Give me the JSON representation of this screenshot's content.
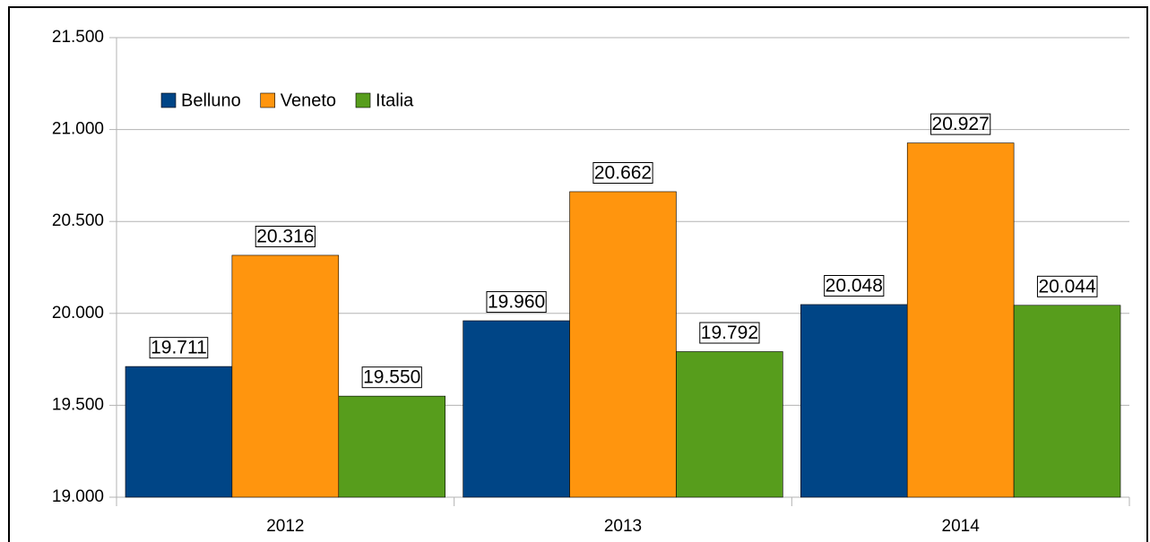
{
  "chart_data": {
    "type": "bar",
    "categories": [
      "2012",
      "2013",
      "2014"
    ],
    "series": [
      {
        "name": "Belluno",
        "color": "#004586",
        "values": [
          19711,
          19960,
          20048
        ],
        "value_labels": [
          "19.711",
          "19.960",
          "20.048"
        ]
      },
      {
        "name": "Veneto",
        "color": "#ff950e",
        "values": [
          20316,
          20662,
          20927
        ],
        "value_labels": [
          "20.316",
          "20.662",
          "20.927"
        ]
      },
      {
        "name": "Italia",
        "color": "#579d1c",
        "values": [
          19550,
          19792,
          20044
        ],
        "value_labels": [
          "19.550",
          "19.792",
          "20.044"
        ]
      }
    ],
    "ylim": [
      19000,
      21500
    ],
    "yticks": [
      {
        "value": 19000,
        "label": "19.000"
      },
      {
        "value": 19500,
        "label": "19.500"
      },
      {
        "value": 20000,
        "label": "20.000"
      },
      {
        "value": 20500,
        "label": "20.500"
      },
      {
        "value": 21000,
        "label": "21.000"
      },
      {
        "value": 21500,
        "label": "21.500"
      }
    ],
    "grid": true,
    "legend": "top-left"
  }
}
